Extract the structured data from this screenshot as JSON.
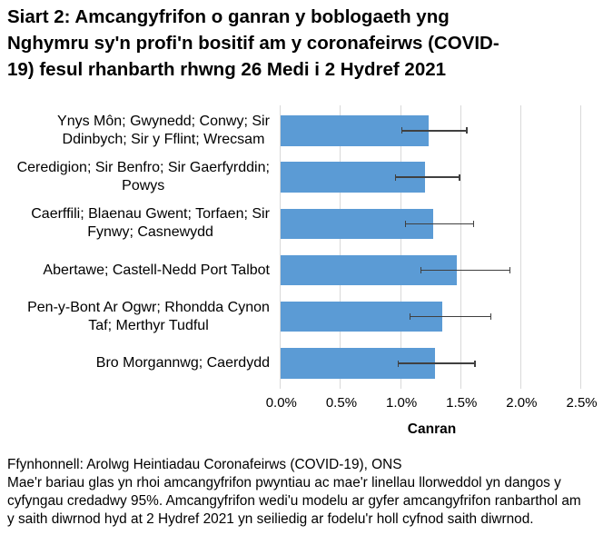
{
  "title": "Siart 2: Amcangyfrifon o ganran y boblogaeth yng Nghymru sy'n profi'n bositif am y coronafeirws (COVID-19) fesul rhanbarth rhwng 26 Medi i 2 Hydref 2021",
  "chart_data": {
    "type": "bar",
    "orientation": "horizontal",
    "title": "Siart 2: Amcangyfrifon o ganran y boblogaeth yng Nghymru sy'n profi'n bositif am y coronafeirws (COVID-19) fesul rhanbarth rhwng 26 Medi i 2 Hydref 2021",
    "categories": [
      "Ynys Môn; Gwynedd; Conwy; Sir Ddinbych; Sir y Fflint; Wrecsam",
      "Ceredigion; Sir Benfro; Sir Gaerfyrddin; Powys",
      "Caerffili; Blaenau Gwent; Torfaen; Sir Fynwy; Casnewydd",
      "Abertawe; Castell-Nedd Port Talbot",
      "Pen-y-Bont Ar Ogwr; Rhondda Cynon Taf; Merthyr Tudful",
      "Bro Morgannwg; Caerdydd"
    ],
    "values": [
      1.23,
      1.2,
      1.27,
      1.47,
      1.35,
      1.29
    ],
    "ci_lower": [
      1.01,
      0.96,
      1.04,
      1.17,
      1.08,
      0.98
    ],
    "ci_upper": [
      1.55,
      1.49,
      1.61,
      1.91,
      1.75,
      1.62
    ],
    "xlabel": "Canran",
    "ylabel": "",
    "xlim": [
      0,
      2.5
    ],
    "x_ticks": [
      0.0,
      0.5,
      1.0,
      1.5,
      2.0,
      2.5
    ],
    "x_tick_labels": [
      "0.0%",
      "0.5%",
      "1.0%",
      "1.5%",
      "2.0%",
      "2.5%"
    ],
    "grid": true,
    "legend": false,
    "bar_color": "#5b9bd5",
    "errorbar_color": "#404040",
    "gridline_color": "#d9d9d9",
    "error_bars": "95% credible intervals"
  },
  "footnote": {
    "source": "Ffynhonnell: Arolwg Heintiadau Coronafeirws (COVID-19), ONS",
    "note": "Mae'r bariau glas yn rhoi amcangyfrifon pwyntiau ac mae'r linellau llorweddol yn dangos y cyfyngau credadwy 95%. Amcangyfrifon wedi'u modelu ar gyfer amcangyfrifon ranbarthol am y saith diwrnod hyd at 2 Hydref 2021 yn seiliedig ar fodelu'r holl cyfnod saith diwrnod."
  }
}
